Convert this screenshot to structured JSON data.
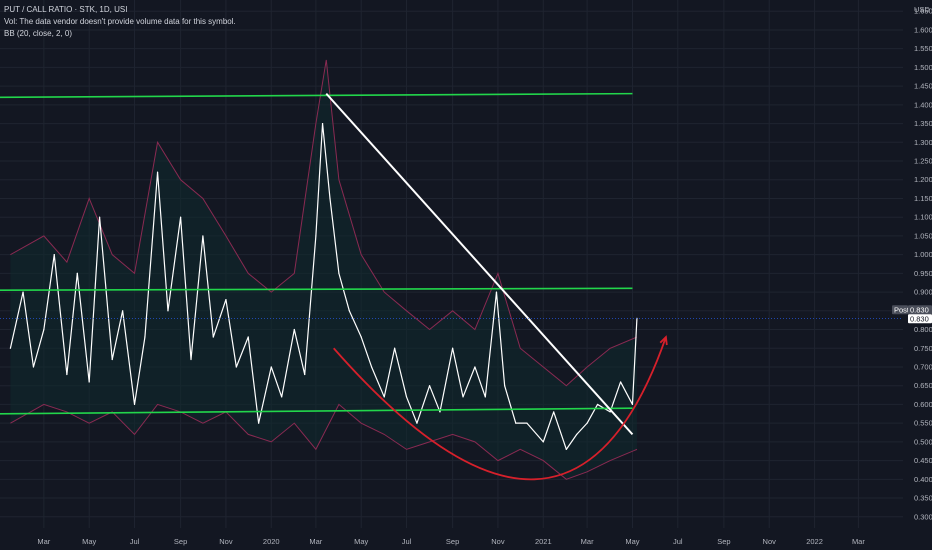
{
  "legend": {
    "title": "PUT / CALL RATIO · STK, 1D, USI",
    "vol_note": "Vol: The data vendor doesn't provide volume data for this symbol.",
    "bb_note": "BB (20, close, 2, 0)"
  },
  "price_scale": {
    "currency": "USD",
    "post_label": "Post",
    "last_value": "0.830",
    "post_value": "0.830"
  },
  "colors": {
    "background": "#131722",
    "grid": "#1f2430",
    "series": "#ffffff",
    "bands": "#8a2a52",
    "band_fill": "#0f2a2e",
    "support_lines": "#22d64b",
    "trendline": "#ffffff",
    "arc": "#d6202b"
  },
  "chart_data": {
    "type": "line",
    "y_ticks": [
      0.3,
      0.35,
      0.4,
      0.45,
      0.5,
      0.55,
      0.6,
      0.65,
      0.7,
      0.75,
      0.8,
      0.85,
      0.9,
      0.95,
      1.0,
      1.05,
      1.1,
      1.15,
      1.2,
      1.25,
      1.3,
      1.35,
      1.4,
      1.45,
      1.5,
      1.55,
      1.6,
      1.65
    ],
    "x_ticks": [
      "Mar",
      "May",
      "Jul",
      "Sep",
      "Nov",
      "2020",
      "Mar",
      "May",
      "Jul",
      "Sep",
      "Nov",
      "2021",
      "Mar",
      "May",
      "Jul",
      "Sep",
      "Nov",
      "2022",
      "Mar"
    ],
    "x_tick_dates": [
      "2019-03-01",
      "2019-05-01",
      "2019-07-01",
      "2019-09-01",
      "2019-11-01",
      "2020-01-01",
      "2020-03-01",
      "2020-05-01",
      "2020-07-01",
      "2020-09-01",
      "2020-11-01",
      "2021-01-01",
      "2021-03-01",
      "2021-05-01",
      "2021-07-01",
      "2021-09-01",
      "2021-11-01",
      "2022-01-01",
      "2022-03-01"
    ],
    "ylim": [
      0.27,
      1.68
    ],
    "series": [
      {
        "name": "PUT / CALL RATIO",
        "points": [
          [
            "2019-01-15",
            0.75
          ],
          [
            "2019-02-01",
            0.9
          ],
          [
            "2019-02-15",
            0.7
          ],
          [
            "2019-03-01",
            0.8
          ],
          [
            "2019-03-15",
            1.0
          ],
          [
            "2019-04-01",
            0.68
          ],
          [
            "2019-04-15",
            0.95
          ],
          [
            "2019-05-01",
            0.66
          ],
          [
            "2019-05-15",
            1.1
          ],
          [
            "2019-06-01",
            0.72
          ],
          [
            "2019-06-15",
            0.85
          ],
          [
            "2019-07-01",
            0.6
          ],
          [
            "2019-07-15",
            0.78
          ],
          [
            "2019-08-01",
            1.22
          ],
          [
            "2019-08-15",
            0.85
          ],
          [
            "2019-09-01",
            1.1
          ],
          [
            "2019-09-15",
            0.72
          ],
          [
            "2019-10-01",
            1.05
          ],
          [
            "2019-10-15",
            0.78
          ],
          [
            "2019-11-01",
            0.88
          ],
          [
            "2019-11-15",
            0.7
          ],
          [
            "2019-12-01",
            0.78
          ],
          [
            "2019-12-15",
            0.55
          ],
          [
            "2020-01-01",
            0.7
          ],
          [
            "2020-01-15",
            0.62
          ],
          [
            "2020-02-01",
            0.8
          ],
          [
            "2020-02-15",
            0.68
          ],
          [
            "2020-03-01",
            1.05
          ],
          [
            "2020-03-10",
            1.35
          ],
          [
            "2020-03-20",
            1.15
          ],
          [
            "2020-04-01",
            0.95
          ],
          [
            "2020-04-15",
            0.85
          ],
          [
            "2020-05-01",
            0.78
          ],
          [
            "2020-05-15",
            0.7
          ],
          [
            "2020-06-01",
            0.62
          ],
          [
            "2020-06-15",
            0.75
          ],
          [
            "2020-07-01",
            0.62
          ],
          [
            "2020-07-15",
            0.55
          ],
          [
            "2020-08-01",
            0.65
          ],
          [
            "2020-08-15",
            0.58
          ],
          [
            "2020-09-01",
            0.75
          ],
          [
            "2020-09-15",
            0.62
          ],
          [
            "2020-10-01",
            0.7
          ],
          [
            "2020-10-15",
            0.62
          ],
          [
            "2020-10-30",
            0.9
          ],
          [
            "2020-11-10",
            0.65
          ],
          [
            "2020-11-25",
            0.55
          ],
          [
            "2020-12-10",
            0.55
          ],
          [
            "2021-01-01",
            0.5
          ],
          [
            "2021-01-15",
            0.58
          ],
          [
            "2021-02-01",
            0.48
          ],
          [
            "2021-02-15",
            0.52
          ],
          [
            "2021-03-01",
            0.55
          ],
          [
            "2021-03-15",
            0.6
          ],
          [
            "2021-04-01",
            0.58
          ],
          [
            "2021-04-15",
            0.66
          ],
          [
            "2021-05-01",
            0.6
          ],
          [
            "2021-05-07",
            0.83
          ]
        ]
      },
      {
        "name": "BB upper",
        "points": [
          [
            "2019-01-15",
            1.0
          ],
          [
            "2019-03-01",
            1.05
          ],
          [
            "2019-04-01",
            0.98
          ],
          [
            "2019-05-01",
            1.15
          ],
          [
            "2019-06-01",
            1.0
          ],
          [
            "2019-07-01",
            0.95
          ],
          [
            "2019-08-01",
            1.3
          ],
          [
            "2019-09-01",
            1.2
          ],
          [
            "2019-10-01",
            1.15
          ],
          [
            "2019-11-01",
            1.05
          ],
          [
            "2019-12-01",
            0.95
          ],
          [
            "2020-01-01",
            0.9
          ],
          [
            "2020-02-01",
            0.95
          ],
          [
            "2020-03-01",
            1.35
          ],
          [
            "2020-03-15",
            1.52
          ],
          [
            "2020-04-01",
            1.2
          ],
          [
            "2020-05-01",
            1.0
          ],
          [
            "2020-06-01",
            0.9
          ],
          [
            "2020-07-01",
            0.85
          ],
          [
            "2020-08-01",
            0.8
          ],
          [
            "2020-09-01",
            0.85
          ],
          [
            "2020-10-01",
            0.8
          ],
          [
            "2020-11-01",
            0.95
          ],
          [
            "2020-12-01",
            0.75
          ],
          [
            "2021-01-01",
            0.7
          ],
          [
            "2021-02-01",
            0.65
          ],
          [
            "2021-03-01",
            0.7
          ],
          [
            "2021-04-01",
            0.75
          ],
          [
            "2021-05-07",
            0.78
          ]
        ]
      },
      {
        "name": "BB lower",
        "points": [
          [
            "2019-01-15",
            0.55
          ],
          [
            "2019-03-01",
            0.6
          ],
          [
            "2019-04-01",
            0.58
          ],
          [
            "2019-05-01",
            0.55
          ],
          [
            "2019-06-01",
            0.58
          ],
          [
            "2019-07-01",
            0.52
          ],
          [
            "2019-08-01",
            0.6
          ],
          [
            "2019-09-01",
            0.58
          ],
          [
            "2019-10-01",
            0.55
          ],
          [
            "2019-11-01",
            0.58
          ],
          [
            "2019-12-01",
            0.52
          ],
          [
            "2020-01-01",
            0.5
          ],
          [
            "2020-02-01",
            0.55
          ],
          [
            "2020-03-01",
            0.48
          ],
          [
            "2020-04-01",
            0.6
          ],
          [
            "2020-05-01",
            0.55
          ],
          [
            "2020-06-01",
            0.52
          ],
          [
            "2020-07-01",
            0.48
          ],
          [
            "2020-08-01",
            0.5
          ],
          [
            "2020-09-01",
            0.52
          ],
          [
            "2020-10-01",
            0.5
          ],
          [
            "2020-11-01",
            0.45
          ],
          [
            "2020-12-01",
            0.48
          ],
          [
            "2021-01-01",
            0.45
          ],
          [
            "2021-02-01",
            0.4
          ],
          [
            "2021-03-01",
            0.42
          ],
          [
            "2021-04-01",
            0.45
          ],
          [
            "2021-05-07",
            0.48
          ]
        ]
      }
    ],
    "drawings": {
      "support_lines": [
        [
          [
            "2019-01-01",
            1.42
          ],
          [
            "2021-05-01",
            1.43
          ]
        ],
        [
          [
            "2019-01-01",
            0.905
          ],
          [
            "2021-05-01",
            0.91
          ]
        ],
        [
          [
            "2019-01-01",
            0.575
          ],
          [
            "2021-05-01",
            0.59
          ]
        ]
      ],
      "trendline": [
        [
          "2020-03-15",
          1.43
        ],
        [
          "2021-05-01",
          0.52
        ]
      ],
      "arc": {
        "start": [
          "2020-03-25",
          0.75
        ],
        "mid": [
          "2020-12-20",
          0.4
        ],
        "end": [
          "2021-06-15",
          0.78
        ]
      }
    },
    "last_price": 0.83
  }
}
